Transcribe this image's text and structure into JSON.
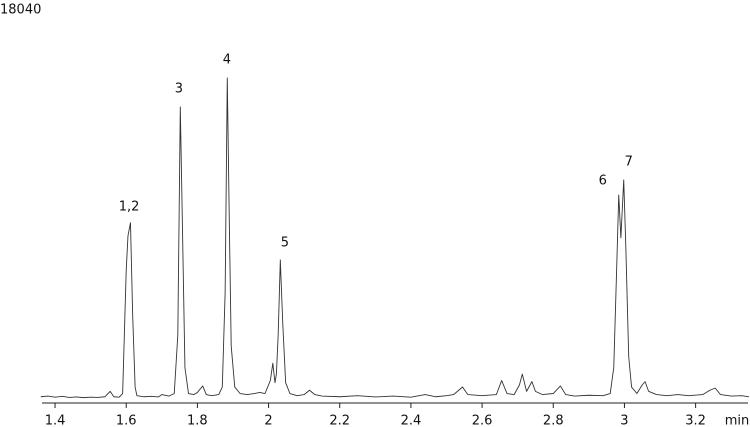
{
  "chart_data": {
    "type": "line",
    "xlabel": "min",
    "xlim": [
      1.36,
      3.35
    ],
    "xticks": [
      1.4,
      1.6,
      1.8,
      2,
      2.2,
      2.4,
      2.6,
      2.8,
      3,
      3.2
    ],
    "ylim": [
      0,
      18040
    ],
    "yticks": [
      18040
    ],
    "color": "#333333",
    "x": [
      1.36,
      1.38,
      1.4,
      1.42,
      1.44,
      1.46,
      1.48,
      1.5,
      1.52,
      1.54,
      1.555,
      1.565,
      1.58,
      1.59,
      1.6,
      1.605,
      1.612,
      1.618,
      1.625,
      1.63,
      1.65,
      1.67,
      1.69,
      1.7,
      1.72,
      1.735,
      1.745,
      1.752,
      1.758,
      1.765,
      1.775,
      1.79,
      1.8,
      1.815,
      1.825,
      1.84,
      1.86,
      1.87,
      1.878,
      1.884,
      1.889,
      1.895,
      1.905,
      1.92,
      1.94,
      1.96,
      1.975,
      1.99,
      2.005,
      2.012,
      2.018,
      2.022,
      2.027,
      2.033,
      2.04,
      2.048,
      2.06,
      2.08,
      2.1,
      2.115,
      2.13,
      2.15,
      2.2,
      2.25,
      2.3,
      2.35,
      2.4,
      2.44,
      2.47,
      2.5,
      2.52,
      2.545,
      2.56,
      2.6,
      2.64,
      2.655,
      2.67,
      2.69,
      2.705,
      2.713,
      2.725,
      2.74,
      2.75,
      2.77,
      2.8,
      2.82,
      2.835,
      2.86,
      2.9,
      2.94,
      2.96,
      2.97,
      2.978,
      2.984,
      2.99,
      2.998,
      3.004,
      3.012,
      3.02,
      3.035,
      3.05,
      3.058,
      3.068,
      3.09,
      3.12,
      3.15,
      3.18,
      3.22,
      3.24,
      3.255,
      3.27,
      3.3,
      3.33,
      3.35
    ],
    "values": [
      150,
      180,
      130,
      170,
      120,
      140,
      110,
      130,
      120,
      150,
      400,
      150,
      130,
      300,
      6000,
      7600,
      8200,
      4000,
      600,
      200,
      150,
      170,
      140,
      250,
      180,
      300,
      3000,
      13554,
      8000,
      1500,
      300,
      250,
      350,
      650,
      250,
      200,
      250,
      600,
      5000,
      14896,
      9000,
      2500,
      600,
      300,
      250,
      300,
      350,
      300,
      900,
      1700,
      800,
      1200,
      3000,
      6476,
      3500,
      800,
      300,
      200,
      250,
      450,
      250,
      180,
      150,
      200,
      140,
      180,
      130,
      250,
      150,
      200,
      250,
      600,
      250,
      200,
      250,
      900,
      300,
      250,
      700,
      1200,
      400,
      850,
      400,
      250,
      300,
      650,
      250,
      180,
      220,
      200,
      300,
      1500,
      6000,
      9483,
      7500,
      10177,
      7000,
      2000,
      600,
      300,
      700,
      850,
      400,
      250,
      200,
      250,
      200,
      250,
      450,
      550,
      250,
      180,
      200,
      150
    ],
    "annotations": [
      {
        "text": "1,2",
        "x": 1.608,
        "y": 8928
      },
      {
        "text": "3",
        "x": 1.748,
        "y": 14387
      },
      {
        "text": "4",
        "x": 1.883,
        "y": 15728
      },
      {
        "text": "5",
        "x": 2.046,
        "y": 7263
      },
      {
        "text": "6",
        "x": 2.939,
        "y": 10131
      },
      {
        "text": "7",
        "x": 3.012,
        "y": 11010
      }
    ]
  }
}
